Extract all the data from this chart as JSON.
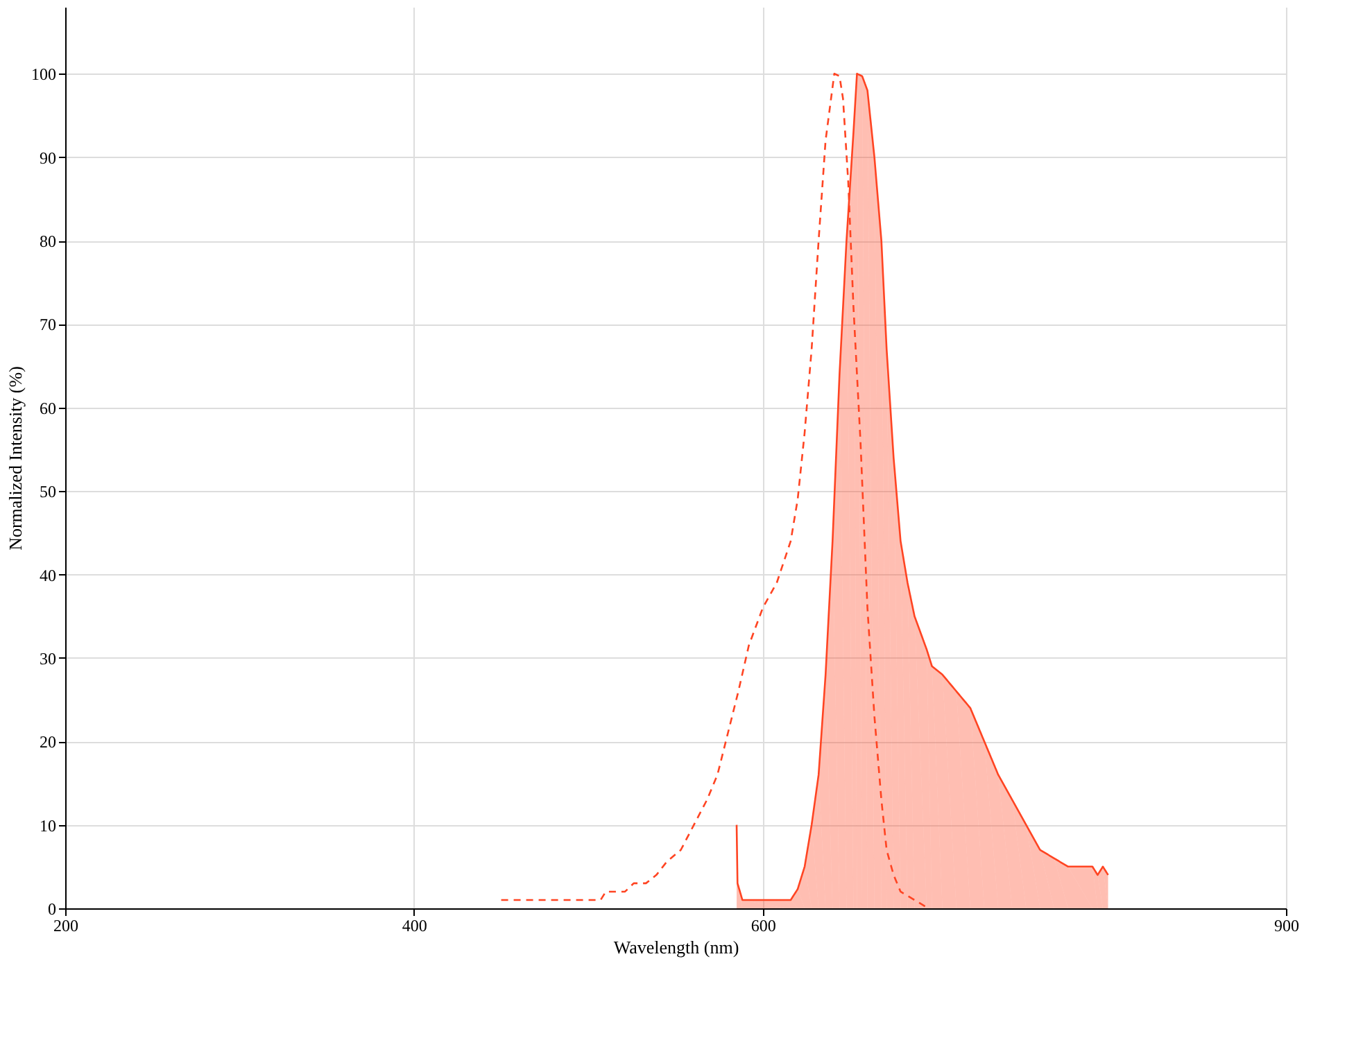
{
  "chart_data": {
    "type": "line",
    "xlabel": "Wavelength (nm)",
    "ylabel": "Normalized Intensity (%)",
    "xlim": [
      200,
      900
    ],
    "xticks": [
      200,
      400,
      600,
      900
    ],
    "ylim": [
      0,
      108
    ],
    "yticks": [
      0,
      10,
      20,
      30,
      40,
      50,
      60,
      70,
      80,
      90,
      100
    ],
    "grid": true,
    "series": [
      {
        "line_style": "dashed",
        "color": "#ff4422",
        "x": [
          450,
          507,
          510,
          521,
          526,
          533,
          539,
          545,
          553,
          560.5,
          568,
          574,
          580,
          586,
          592,
          600,
          608,
          616,
          620,
          624,
          628,
          632,
          636,
          641,
          644,
          646,
          649,
          652,
          656,
          660,
          664,
          668,
          671,
          675,
          679,
          687,
          695
        ],
        "values": [
          1,
          1,
          2,
          2,
          3,
          3,
          4,
          5.6,
          7,
          10,
          13,
          16,
          21,
          26,
          31.5,
          36,
          39,
          44,
          49,
          57,
          67,
          80,
          92,
          100,
          99.7,
          97,
          87,
          72,
          56,
          36,
          23,
          13,
          7,
          4,
          2,
          1,
          0
        ]
      },
      {
        "type": "area",
        "line_style": "solid",
        "color": "#ff4422",
        "x": [
          585,
          585.5,
          588.3,
          612.8,
          616,
          620,
          624,
          628,
          632,
          636,
          640,
          644,
          648,
          652,
          654,
          657,
          660,
          664,
          668,
          671,
          675,
          679,
          683,
          687,
          694,
          697,
          703,
          711,
          719,
          727,
          735,
          743,
          751,
          759,
          767,
          775,
          789,
          792,
          795,
          798
        ],
        "values": [
          10,
          3,
          1,
          1,
          1,
          2.3,
          5,
          10,
          16,
          28,
          44,
          64,
          80,
          93,
          100,
          99.7,
          98,
          90,
          80,
          67,
          54,
          44,
          39,
          35,
          31,
          29,
          28,
          26,
          24,
          20,
          16,
          13,
          10,
          7,
          6,
          5,
          5,
          4,
          5,
          4
        ]
      }
    ]
  }
}
